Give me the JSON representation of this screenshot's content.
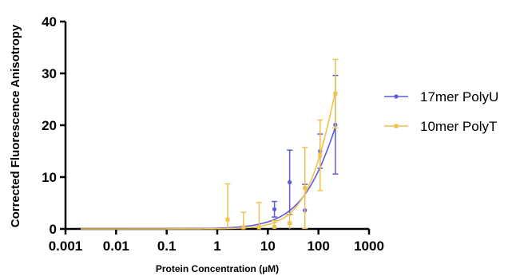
{
  "chart_data": {
    "type": "scatter",
    "xlabel": "Protein Concentration (µM)",
    "ylabel": "Corrected Fluorescence Anisotropy",
    "x_scale": "log",
    "xlim": [
      0.001,
      1000
    ],
    "ylim": [
      0,
      40
    ],
    "x_ticks": [
      0.001,
      0.01,
      0.1,
      1,
      10,
      100,
      1000
    ],
    "x_tick_labels": [
      "0.001",
      "0.01",
      "0.1",
      "1",
      "10",
      "100",
      "1000"
    ],
    "y_ticks": [
      0,
      10,
      20,
      30,
      40
    ],
    "y_tick_labels": [
      "0",
      "10",
      "20",
      "30",
      "40"
    ],
    "grid": false,
    "legend_position": "right",
    "series": [
      {
        "name": "17mer PolyU",
        "color": "#5B5BE0",
        "x": [
          13.5,
          27,
          54,
          108,
          216
        ],
        "y": [
          3.8,
          9.0,
          3.6,
          15.0,
          20.1
        ],
        "err": [
          1.5,
          6.2,
          5.0,
          3.3,
          9.5
        ],
        "fit": {
          "kd": 400,
          "bmax": 56,
          "n": 1.0
        }
      },
      {
        "name": "10mer PolyT",
        "color": "#F2C14E",
        "x": [
          1.6,
          3.3,
          6.7,
          13.5,
          27,
          54,
          108,
          216
        ],
        "y": [
          1.8,
          0.3,
          0.3,
          0.4,
          1.1,
          7.9,
          14.2,
          26.1
        ],
        "err": [
          6.9,
          2.9,
          4.8,
          1.2,
          1.6,
          7.8,
          6.8,
          6.6
        ],
        "fit": {
          "kd": 270,
          "bmax": 62,
          "n": 1.3
        }
      }
    ]
  }
}
